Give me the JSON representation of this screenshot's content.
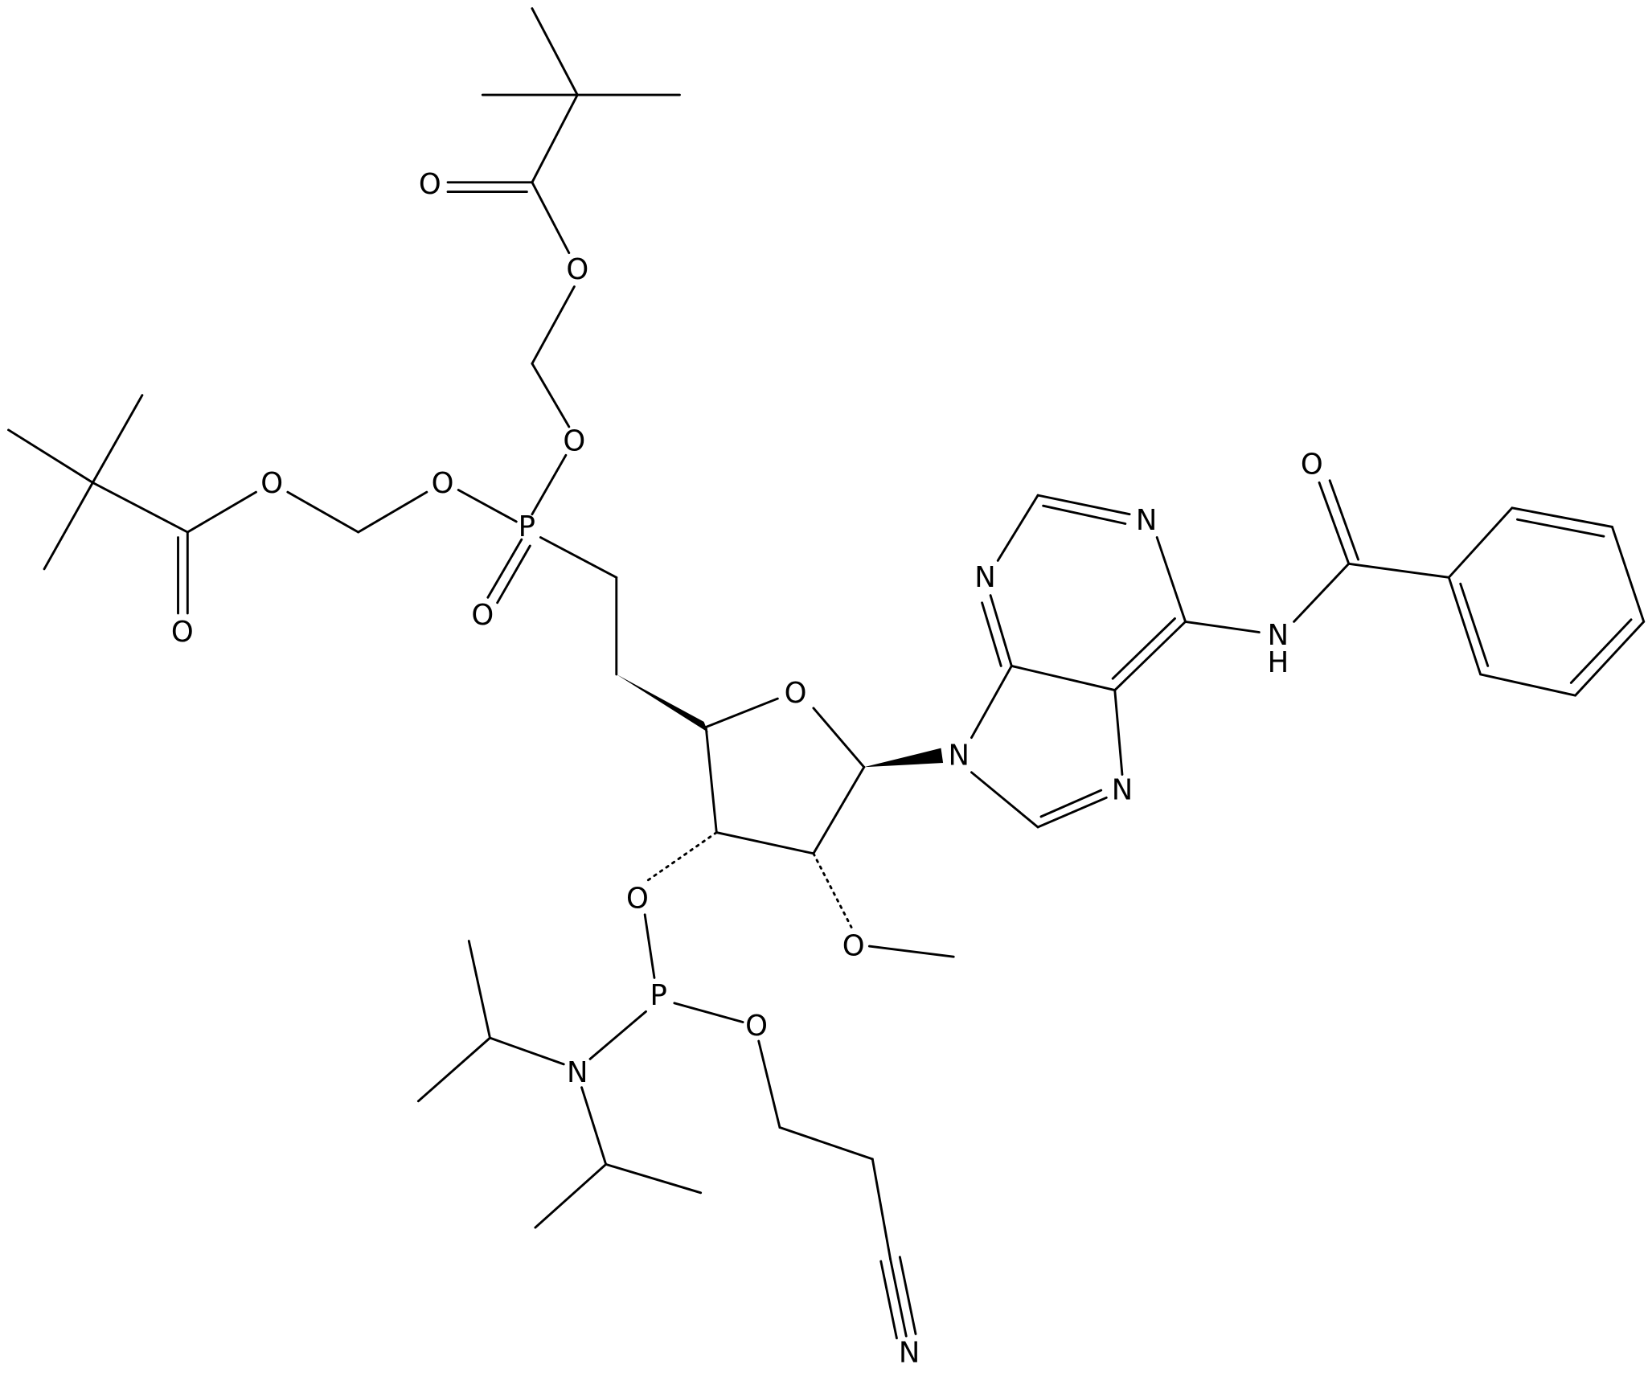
{
  "nodes": [
    {
      "label": "O"
    },
    {
      "label": "O"
    },
    {
      "label": "O"
    },
    {
      "label": "O"
    },
    {
      "label": "O"
    },
    {
      "label": "P"
    },
    {
      "label": "O"
    },
    {
      "label": "O"
    },
    {
      "label": "O"
    },
    {
      "label": "N"
    },
    {
      "label": "N"
    },
    {
      "label": "N"
    },
    {
      "label": "H"
    },
    {
      "label": "O"
    },
    {
      "label": "N"
    },
    {
      "label": "N"
    },
    {
      "label": "O"
    },
    {
      "label": "O"
    },
    {
      "label": "P"
    },
    {
      "label": "O"
    },
    {
      "label": "N"
    },
    {
      "label": "N"
    }
  ]
}
